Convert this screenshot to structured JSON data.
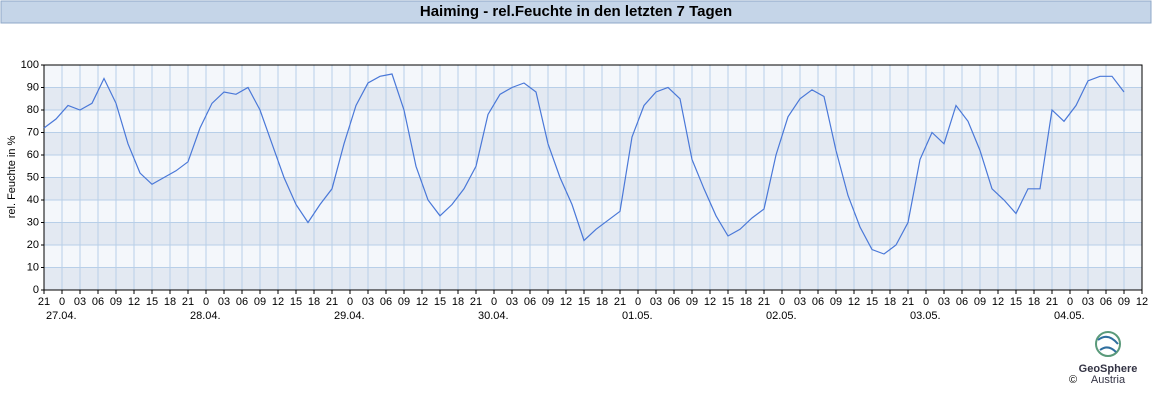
{
  "chart_data": {
    "type": "line",
    "title": "Haiming - rel.Feuchte in den letzten 7 Tagen",
    "y_label": "rel. Feuchte in %",
    "xlim": [
      0,
      183
    ],
    "ylim": [
      0,
      100
    ],
    "yticks": [
      0,
      10,
      20,
      30,
      40,
      50,
      60,
      70,
      80,
      90,
      100
    ],
    "xticks": [
      {
        "value": 0,
        "label": "21"
      },
      {
        "value": 3,
        "label": "0"
      },
      {
        "value": 6,
        "label": "03"
      },
      {
        "value": 9,
        "label": "06"
      },
      {
        "value": 12,
        "label": "09"
      },
      {
        "value": 15,
        "label": "12"
      },
      {
        "value": 18,
        "label": "15"
      },
      {
        "value": 21,
        "label": "18"
      },
      {
        "value": 24,
        "label": "21"
      },
      {
        "value": 27,
        "label": "0"
      },
      {
        "value": 30,
        "label": "03"
      },
      {
        "value": 33,
        "label": "06"
      },
      {
        "value": 36,
        "label": "09"
      },
      {
        "value": 39,
        "label": "12"
      },
      {
        "value": 42,
        "label": "15"
      },
      {
        "value": 45,
        "label": "18"
      },
      {
        "value": 48,
        "label": "21"
      },
      {
        "value": 51,
        "label": "0"
      },
      {
        "value": 54,
        "label": "03"
      },
      {
        "value": 57,
        "label": "06"
      },
      {
        "value": 60,
        "label": "09"
      },
      {
        "value": 63,
        "label": "12"
      },
      {
        "value": 66,
        "label": "15"
      },
      {
        "value": 69,
        "label": "18"
      },
      {
        "value": 72,
        "label": "21"
      },
      {
        "value": 75,
        "label": "0"
      },
      {
        "value": 78,
        "label": "03"
      },
      {
        "value": 81,
        "label": "06"
      },
      {
        "value": 84,
        "label": "09"
      },
      {
        "value": 87,
        "label": "12"
      },
      {
        "value": 90,
        "label": "15"
      },
      {
        "value": 93,
        "label": "18"
      },
      {
        "value": 96,
        "label": "21"
      },
      {
        "value": 99,
        "label": "0"
      },
      {
        "value": 102,
        "label": "03"
      },
      {
        "value": 105,
        "label": "06"
      },
      {
        "value": 108,
        "label": "09"
      },
      {
        "value": 111,
        "label": "12"
      },
      {
        "value": 114,
        "label": "15"
      },
      {
        "value": 117,
        "label": "18"
      },
      {
        "value": 120,
        "label": "21"
      },
      {
        "value": 123,
        "label": "0"
      },
      {
        "value": 126,
        "label": "03"
      },
      {
        "value": 129,
        "label": "06"
      },
      {
        "value": 132,
        "label": "09"
      },
      {
        "value": 135,
        "label": "12"
      },
      {
        "value": 138,
        "label": "15"
      },
      {
        "value": 141,
        "label": "18"
      },
      {
        "value": 144,
        "label": "21"
      },
      {
        "value": 147,
        "label": "0"
      },
      {
        "value": 150,
        "label": "03"
      },
      {
        "value": 153,
        "label": "06"
      },
      {
        "value": 156,
        "label": "09"
      },
      {
        "value": 159,
        "label": "12"
      },
      {
        "value": 162,
        "label": "15"
      },
      {
        "value": 165,
        "label": "18"
      },
      {
        "value": 168,
        "label": "21"
      },
      {
        "value": 171,
        "label": "0"
      },
      {
        "value": 174,
        "label": "03"
      },
      {
        "value": 177,
        "label": "06"
      },
      {
        "value": 180,
        "label": "09"
      },
      {
        "value": 183,
        "label": "12"
      }
    ],
    "day_labels": [
      {
        "value": 3,
        "label": "27.04."
      },
      {
        "value": 27,
        "label": "28.04."
      },
      {
        "value": 51,
        "label": "29.04."
      },
      {
        "value": 75,
        "label": "30.04."
      },
      {
        "value": 99,
        "label": "01.05."
      },
      {
        "value": 123,
        "label": "02.05."
      },
      {
        "value": 147,
        "label": "03.05."
      },
      {
        "value": 171,
        "label": "04.05."
      }
    ],
    "grid": true,
    "series": [
      {
        "color": "#4a78d8",
        "x": [
          0,
          2,
          4,
          6,
          8,
          10,
          12,
          14,
          16,
          18,
          20,
          22,
          24,
          26,
          28,
          30,
          32,
          34,
          36,
          38,
          40,
          42,
          44,
          46,
          48,
          50,
          52,
          54,
          56,
          58,
          60,
          62,
          64,
          66,
          68,
          70,
          72,
          74,
          76,
          78,
          80,
          82,
          84,
          86,
          88,
          90,
          92,
          94,
          96,
          98,
          100,
          102,
          104,
          106,
          108,
          110,
          112,
          114,
          116,
          118,
          120,
          122,
          124,
          126,
          128,
          130,
          132,
          134,
          136,
          138,
          140,
          142,
          144,
          146,
          148,
          150,
          152,
          154,
          156,
          158,
          160,
          162,
          164,
          166,
          168,
          170,
          172,
          174,
          176,
          178,
          180
        ],
        "values": [
          72,
          76,
          82,
          80,
          83,
          94,
          83,
          65,
          52,
          47,
          50,
          53,
          57,
          72,
          83,
          88,
          87,
          90,
          80,
          65,
          50,
          38,
          30,
          38,
          45,
          65,
          82,
          92,
          95,
          96,
          80,
          55,
          40,
          33,
          38,
          45,
          55,
          78,
          87,
          90,
          92,
          88,
          65,
          50,
          38,
          22,
          27,
          31,
          35,
          68,
          82,
          88,
          90,
          85,
          58,
          45,
          33,
          24,
          27,
          32,
          36,
          60,
          77,
          85,
          89,
          86,
          62,
          42,
          28,
          18,
          16,
          20,
          30,
          58,
          70,
          65,
          82,
          75,
          62,
          45,
          40,
          34,
          45,
          45,
          80,
          75,
          82,
          93,
          95,
          95,
          88
        ]
      }
    ]
  },
  "logo": {
    "name": "GeoSphere",
    "sub": "Austria",
    "copyright": "©"
  }
}
